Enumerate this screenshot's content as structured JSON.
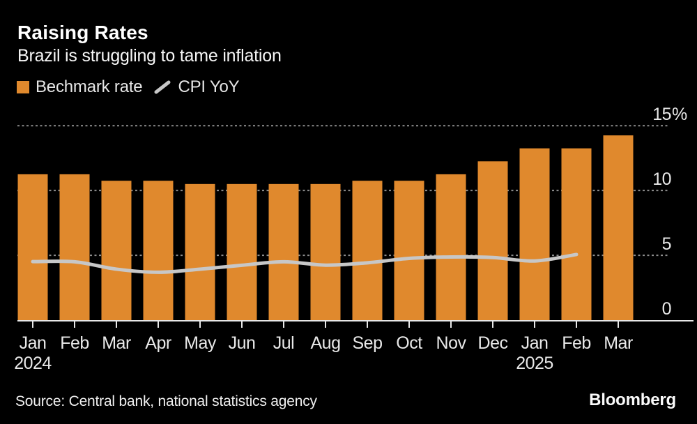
{
  "header": {
    "title": "Raising Rates",
    "subtitle": "Brazil is struggling to tame inflation"
  },
  "legend": {
    "items": [
      {
        "label": "Bechmark rate",
        "marker": "square",
        "color": "#E0892D"
      },
      {
        "label": "CPI YoY",
        "marker": "line",
        "color": "#C7C7C7"
      }
    ]
  },
  "chart_data": {
    "type": "bar+line",
    "title": "Raising Rates",
    "subtitle": "Brazil is struggling to tame inflation",
    "categories": [
      "Jan",
      "Feb",
      "Mar",
      "Apr",
      "May",
      "Jun",
      "Jul",
      "Aug",
      "Sep",
      "Oct",
      "Nov",
      "Dec",
      "Jan",
      "Feb",
      "Mar"
    ],
    "year_labels": [
      {
        "label": "2024",
        "index": 0
      },
      {
        "label": "2025",
        "index": 12
      }
    ],
    "series": [
      {
        "name": "Bechmark rate",
        "type": "bar",
        "color": "#E0892D",
        "values": [
          11.25,
          11.25,
          10.75,
          10.75,
          10.5,
          10.5,
          10.5,
          10.5,
          10.75,
          10.75,
          11.25,
          12.25,
          13.25,
          13.25,
          14.25
        ]
      },
      {
        "name": "CPI YoY",
        "type": "line",
        "color": "#C7C7C7",
        "values": [
          4.51,
          4.5,
          3.93,
          3.69,
          3.93,
          4.23,
          4.5,
          4.24,
          4.42,
          4.76,
          4.87,
          4.83,
          4.56,
          5.06,
          null
        ]
      }
    ],
    "ylim": [
      0,
      15
    ],
    "yticks": [
      {
        "value": 0,
        "label": "0"
      },
      {
        "value": 5,
        "label": "5"
      },
      {
        "value": 10,
        "label": "10"
      },
      {
        "value": 15,
        "label": "15%"
      }
    ],
    "grid": "horizontal dashed",
    "legend_position": "top-left",
    "colors": {
      "background": "#000000",
      "grid": "#8E8E8E",
      "axis": "#E8E8E8",
      "axis_labels": "#E9E9E9"
    }
  },
  "footer": {
    "source": "Source: Central bank, national statistics agency",
    "brand": "Bloomberg"
  }
}
